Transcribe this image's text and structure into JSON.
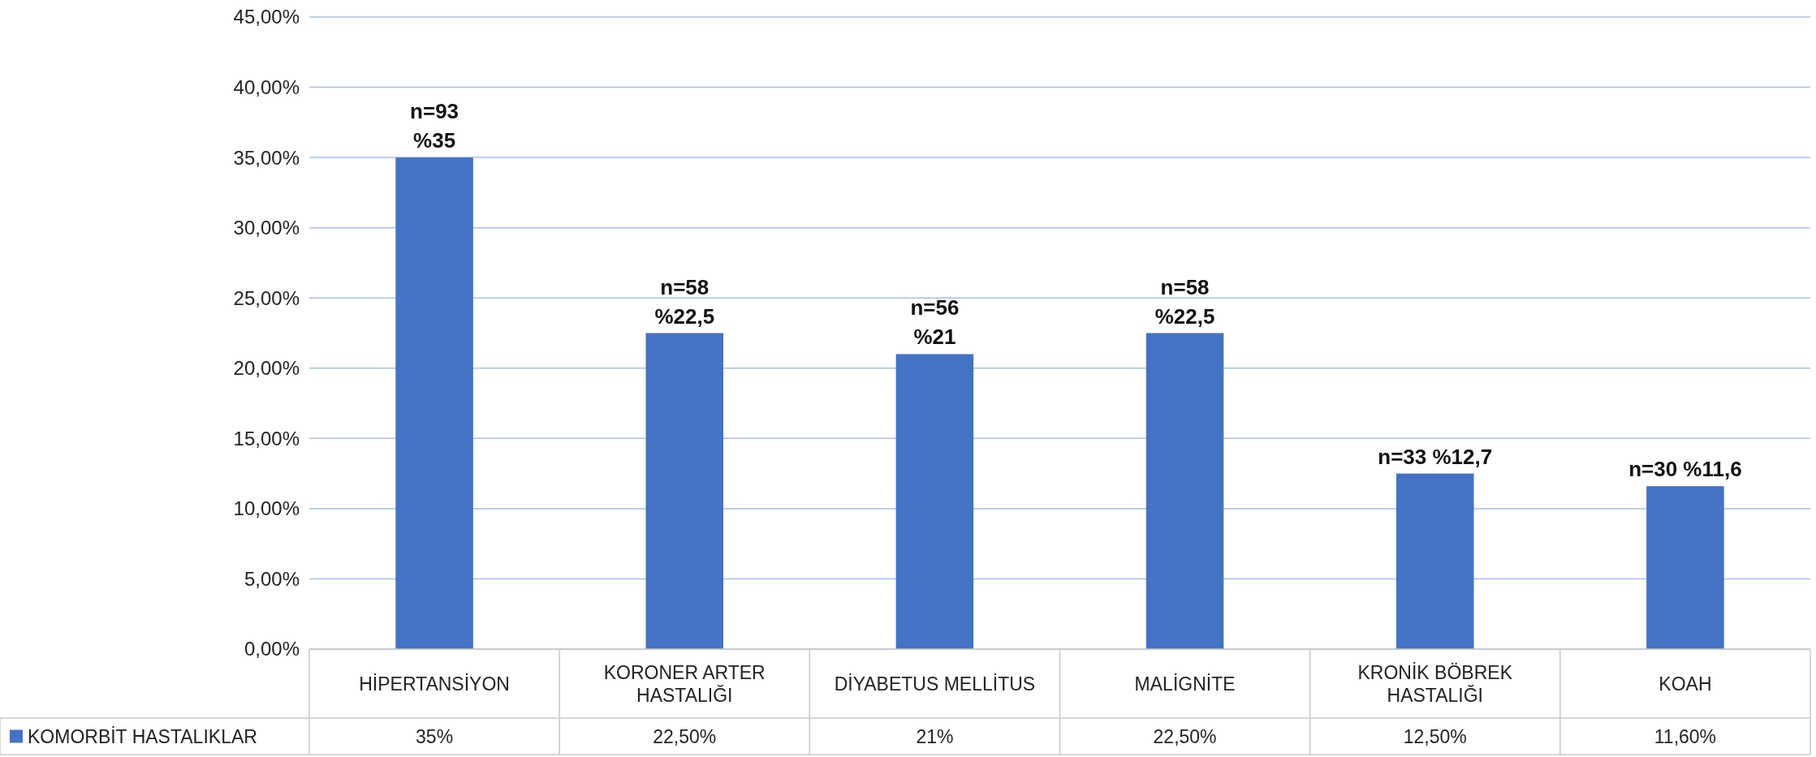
{
  "chart_data": {
    "type": "bar",
    "categories": [
      "HİPERTANSİYON",
      "KORONER ARTER HASTALIĞI",
      "DİYABETUS MELLİTUS",
      "MALİGNİTE",
      "KRONİK BÖBREK HASTALIĞI",
      "KOAH"
    ],
    "series": [
      {
        "name": "KOMORBİT HASTALIKLAR",
        "color": "#4472c4",
        "values": [
          35,
          22.5,
          21,
          22.5,
          12.5,
          11.6
        ],
        "value_labels": [
          "35%",
          "22,50%",
          "21%",
          "22,50%",
          "12,50%",
          "11,60%"
        ]
      }
    ],
    "ylim": [
      0,
      45
    ],
    "yticks": [
      {
        "value": 0,
        "label": "0,00%"
      },
      {
        "value": 5,
        "label": "5,00%"
      },
      {
        "value": 10,
        "label": "10,00%"
      },
      {
        "value": 15,
        "label": "15,00%"
      },
      {
        "value": 20,
        "label": "20,00%"
      },
      {
        "value": 25,
        "label": "25,00%"
      },
      {
        "value": 30,
        "label": "30,00%"
      },
      {
        "value": 35,
        "label": "35,00%"
      },
      {
        "value": 40,
        "label": "40,00%"
      },
      {
        "value": 45,
        "label": "45,00%"
      }
    ],
    "grid": "y",
    "legend": "bottom",
    "annotations": [
      {
        "text": "n=93\n%35",
        "x": "HİPERTANSİYON",
        "y": 35
      },
      {
        "text": "n=58\n%22,5",
        "x": "KORONER ARTER HASTALIĞI",
        "y": 22.5
      },
      {
        "text": "n=56\n%21",
        "x": "DİYABETUS MELLİTUS",
        "y": 21
      },
      {
        "text": "n=58\n%22,5",
        "x": "MALİGNİTE",
        "y": 22.5
      },
      {
        "text": "n=33 %12,7",
        "x": "KRONİK BÖBREK HASTALIĞI",
        "y": 12.5
      },
      {
        "text": "n=30 %11,6",
        "x": "KOAH",
        "y": 11.6
      }
    ]
  }
}
